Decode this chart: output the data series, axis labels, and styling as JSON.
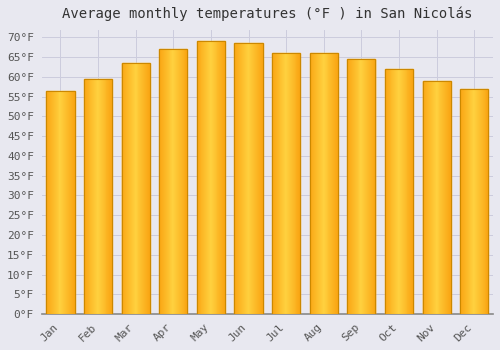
{
  "title": "Average monthly temperatures (°F ) in San Nicolás",
  "months": [
    "Jan",
    "Feb",
    "Mar",
    "Apr",
    "May",
    "Jun",
    "Jul",
    "Aug",
    "Sep",
    "Oct",
    "Nov",
    "Dec"
  ],
  "values": [
    56.5,
    59.5,
    63.5,
    67.0,
    69.0,
    68.5,
    66.0,
    66.0,
    64.5,
    62.0,
    59.0,
    57.0
  ],
  "bar_color_center": "#FFA500",
  "bar_color_edge": "#F5C518",
  "bar_left_color": "#FFB700",
  "background_color": "#E8E8F0",
  "grid_color": "#CCCCDD",
  "ylim": [
    0,
    72
  ],
  "yticks": [
    0,
    5,
    10,
    15,
    20,
    25,
    30,
    35,
    40,
    45,
    50,
    55,
    60,
    65,
    70
  ],
  "ylabel_format": "°F",
  "title_fontsize": 10,
  "tick_fontsize": 8,
  "bar_width": 0.75
}
